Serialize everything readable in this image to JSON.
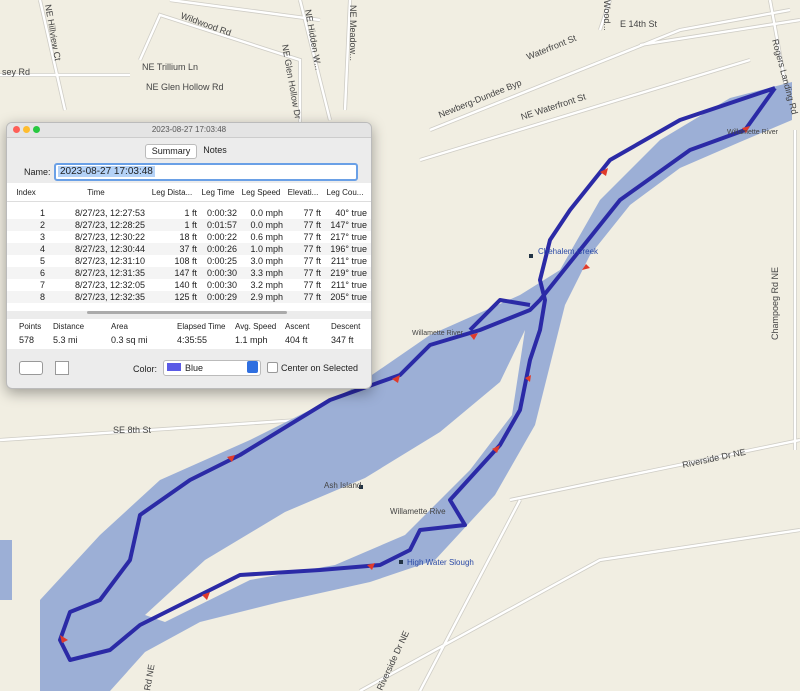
{
  "window": {
    "title": "2023-08-27 17:03:48",
    "tabs": [
      "Summary",
      "Notes"
    ],
    "name_label": "Name:",
    "name_value": "2023-08-27 17:03:48"
  },
  "table": {
    "columns": [
      "Index",
      "Time",
      "Leg Dista...",
      "Leg Time",
      "Leg Speed",
      "Elevati...",
      "Leg Cou..."
    ],
    "rows": [
      [
        "1",
        "8/27/23, 12:27:53",
        "1 ft",
        "0:00:32",
        "0.0 mph",
        "77 ft",
        "40° true"
      ],
      [
        "2",
        "8/27/23, 12:28:25",
        "1 ft",
        "0:01:57",
        "0.0 mph",
        "77 ft",
        "147° true"
      ],
      [
        "3",
        "8/27/23, 12:30:22",
        "18 ft",
        "0:00:22",
        "0.6 mph",
        "77 ft",
        "217° true"
      ],
      [
        "4",
        "8/27/23, 12:30:44",
        "37 ft",
        "0:00:26",
        "1.0 mph",
        "77 ft",
        "196° true"
      ],
      [
        "5",
        "8/27/23, 12:31:10",
        "108 ft",
        "0:00:25",
        "3.0 mph",
        "77 ft",
        "211° true"
      ],
      [
        "6",
        "8/27/23, 12:31:35",
        "147 ft",
        "0:00:30",
        "3.3 mph",
        "77 ft",
        "219° true"
      ],
      [
        "7",
        "8/27/23, 12:32:05",
        "140 ft",
        "0:00:30",
        "3.2 mph",
        "77 ft",
        "211° true"
      ],
      [
        "8",
        "8/27/23, 12:32:35",
        "125 ft",
        "0:00:29",
        "2.9 mph",
        "77 ft",
        "205° true"
      ]
    ]
  },
  "summary": {
    "columns": [
      "Points",
      "Distance",
      "Area",
      "Elapsed Time",
      "Avg. Speed",
      "Ascent",
      "Descent"
    ],
    "values": [
      "578",
      "5.3 mi",
      "0.3 sq mi",
      "4:35:55",
      "1.1 mph",
      "404 ft",
      "347 ft"
    ]
  },
  "controls": {
    "color_label": "Color:",
    "color_value": "Blue",
    "center_label": "Center on Selected"
  },
  "map": {
    "labels": [
      "Wildwood Rd",
      "NE Hillview Ct",
      "NE Hidden W...",
      "NE Meadow...",
      "Wood...",
      "E 14th St",
      "Rogers Landing Rd",
      "Waterfront St",
      "Newberg-Dundee Byp",
      "NE Waterfront St",
      "NE Trillium Ln",
      "NE Glen Hollow Dr",
      "NE Glen Hollow Rd",
      "sey Rd",
      "Willamette River",
      "Chehalem Creek",
      "Willamette River",
      "Champoeg Rd NE",
      "SE 8th St",
      "Riverside Dr NE",
      "Ash Island",
      "Willamette Rive",
      "High Water Slough",
      "Rd NE",
      "Riverside Dr NE"
    ]
  }
}
